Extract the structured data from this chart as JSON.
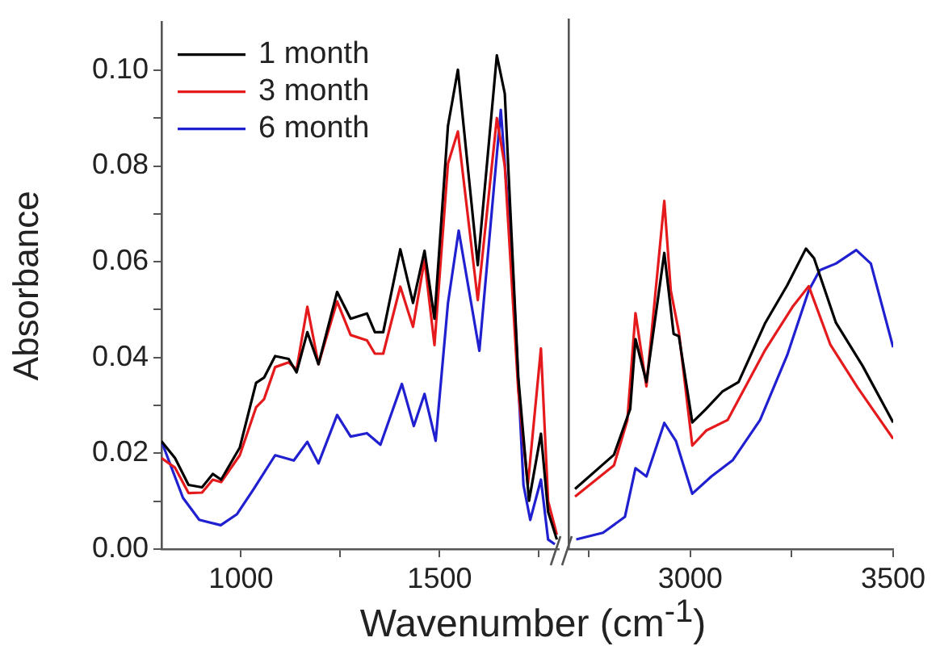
{
  "chart_data": [
    {
      "type": "line",
      "xlabel": "Wavenumber (cm$^{-1}$)",
      "ylabel": "Absorbance",
      "legend": "top left",
      "grid": false,
      "marker": "none",
      "line_style": "solid",
      "xlim": [
        800,
        1800
      ],
      "xticks": [
        1000,
        {
          "value": 1250,
          "label": null
        },
        1500,
        {
          "value": 1750,
          "label": null
        }
      ],
      "ylim": [
        0,
        0.11
      ],
      "yticks": [
        {
          "value": 0,
          "label": "0.00"
        },
        {
          "value": 0.01,
          "label": null
        },
        {
          "value": 0.02,
          "label": "0.02"
        },
        {
          "value": 0.03,
          "label": null
        },
        {
          "value": 0.04,
          "label": "0.04"
        },
        {
          "value": 0.05,
          "label": null
        },
        {
          "value": 0.06,
          "label": "0.06"
        },
        {
          "value": 0.07,
          "label": null
        },
        {
          "value": 0.08,
          "label": "0.08"
        },
        {
          "value": 0.09,
          "label": null
        },
        {
          "value": 0.1,
          "label": "0.10"
        }
      ],
      "series": [
        {
          "name": "1 month",
          "color": "#000000",
          "x": [
            800,
            834,
            868,
            902,
            929,
            950,
            997,
            1038,
            1058,
            1086,
            1120,
            1140,
            1167,
            1195,
            1242,
            1276,
            1317,
            1337,
            1358,
            1401,
            1433,
            1462,
            1487,
            1521,
            1546,
            1596,
            1644,
            1664,
            1698,
            1725,
            1755,
            1773,
            1795
          ],
          "values": [
            0.0225,
            0.019,
            0.0134,
            0.0129,
            0.0157,
            0.0145,
            0.0212,
            0.0347,
            0.0358,
            0.0403,
            0.0397,
            0.0369,
            0.0453,
            0.0386,
            0.0537,
            0.0481,
            0.0492,
            0.0453,
            0.0453,
            0.0626,
            0.0514,
            0.0623,
            0.0481,
            0.0884,
            0.1001,
            0.0593,
            0.1031,
            0.0951,
            0.0358,
            0.0101,
            0.0241,
            0.0078,
            0.002
          ]
        },
        {
          "name": "3 month",
          "color": "#e41a1c",
          "x": [
            800,
            834,
            868,
            902,
            929,
            950,
            997,
            1038,
            1058,
            1086,
            1120,
            1140,
            1167,
            1195,
            1242,
            1276,
            1317,
            1337,
            1358,
            1401,
            1433,
            1462,
            1487,
            1521,
            1546,
            1596,
            1644,
            1664,
            1698,
            1722,
            1755,
            1773,
            1795
          ],
          "values": [
            0.019,
            0.017,
            0.0117,
            0.0118,
            0.0145,
            0.014,
            0.0196,
            0.0296,
            0.0313,
            0.038,
            0.039,
            0.0375,
            0.0506,
            0.0386,
            0.0517,
            0.0447,
            0.0436,
            0.0408,
            0.0408,
            0.0548,
            0.0464,
            0.0604,
            0.0426,
            0.0805,
            0.0872,
            0.052,
            0.09,
            0.08,
            0.033,
            0.0134,
            0.0419,
            0.01,
            0.003
          ]
        },
        {
          "name": "6 month",
          "color": "#2020d0",
          "x": [
            800,
            854,
            895,
            949,
            990,
            1031,
            1086,
            1133,
            1167,
            1195,
            1242,
            1276,
            1317,
            1351,
            1405,
            1435,
            1462,
            1490,
            1521,
            1548,
            1600,
            1654,
            1684,
            1711,
            1728,
            1755,
            1773,
            1790
          ],
          "values": [
            0.0225,
            0.0107,
            0.0061,
            0.005,
            0.0073,
            0.0124,
            0.0196,
            0.0185,
            0.0224,
            0.0179,
            0.028,
            0.0235,
            0.0242,
            0.0218,
            0.0345,
            0.0257,
            0.0324,
            0.0226,
            0.0514,
            0.0665,
            0.0414,
            0.0917,
            0.0582,
            0.0134,
            0.0061,
            0.0145,
            0.002,
            0.001
          ]
        }
      ]
    },
    {
      "type": "line",
      "tick_labels": "x",
      "grid": false,
      "marker": "none",
      "line_style": "solid",
      "xlim": [
        2700,
        3500
      ],
      "xticks": [
        {
          "value": 2750,
          "label": null
        },
        3000,
        {
          "value": 3250,
          "label": null
        },
        3500
      ],
      "ylim": [
        0,
        0.11
      ],
      "series": [
        {
          "color": "#000000",
          "x": [
            2716,
            2812,
            2852,
            2865,
            2892,
            2936,
            2959,
            2972,
            3005,
            3039,
            3079,
            3119,
            3185,
            3239,
            3285,
            3305,
            3359,
            3425,
            3500
          ],
          "values": [
            0.0125,
            0.0196,
            0.0291,
            0.0436,
            0.0347,
            0.0615,
            0.0447,
            0.0442,
            0.0263,
            0.0291,
            0.0327,
            0.0347,
            0.047,
            0.0548,
            0.0624,
            0.0604,
            0.047,
            0.038,
            0.0263
          ]
        },
        {
          "color": "#e41a1c",
          "x": [
            2716,
            2812,
            2845,
            2865,
            2892,
            2936,
            2952,
            2972,
            3005,
            3039,
            3092,
            3185,
            3252,
            3292,
            3345,
            3412,
            3500
          ],
          "values": [
            0.0109,
            0.0174,
            0.0268,
            0.049,
            0.0338,
            0.0723,
            0.0537,
            0.045,
            0.0215,
            0.0246,
            0.0268,
            0.0414,
            0.0503,
            0.0546,
            0.0425,
            0.0336,
            0.0229
          ]
        },
        {
          "color": "#2020d0",
          "x": [
            2719,
            2785,
            2839,
            2865,
            2892,
            2936,
            2965,
            3005,
            3052,
            3105,
            3172,
            3239,
            3292,
            3319,
            3359,
            3409,
            3445,
            3500
          ],
          "values": [
            0.002,
            0.0034,
            0.0067,
            0.0168,
            0.0151,
            0.0262,
            0.0224,
            0.0115,
            0.0151,
            0.0185,
            0.0268,
            0.0403,
            0.0537,
            0.0579,
            0.0593,
            0.0621,
            0.0593,
            0.0419
          ]
        }
      ]
    }
  ]
}
